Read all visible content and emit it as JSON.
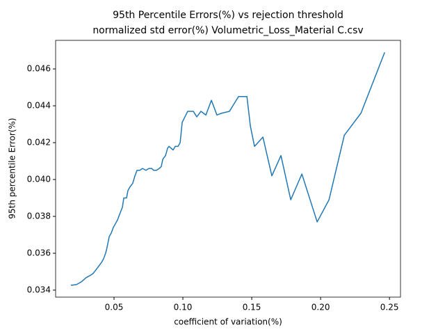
{
  "chart_data": {
    "type": "line",
    "title": [
      "95th Percentile Errors(%) vs rejection threshold",
      "normalized std error(%) Volumetric_Loss_Material C.csv"
    ],
    "x_label": "coefficient of variation(%)",
    "y_label": "95th percentile Error(%)",
    "x": [
      0.0187,
      0.0227,
      0.0263,
      0.0298,
      0.0328,
      0.0348,
      0.0379,
      0.0409,
      0.0424,
      0.0439,
      0.0449,
      0.0465,
      0.048,
      0.0495,
      0.051,
      0.0525,
      0.054,
      0.0561,
      0.0571,
      0.0591,
      0.0601,
      0.0616,
      0.0636,
      0.0652,
      0.0667,
      0.0687,
      0.0707,
      0.0732,
      0.0753,
      0.0773,
      0.0788,
      0.0808,
      0.0828,
      0.0843,
      0.0854,
      0.0874,
      0.0889,
      0.0899,
      0.0914,
      0.0929,
      0.0944,
      0.0965,
      0.098,
      0.0995,
      0.1015,
      0.1035,
      0.1061,
      0.1076,
      0.1101,
      0.1131,
      0.1167,
      0.1207,
      0.1247,
      0.1283,
      0.1338,
      0.1404,
      0.1465,
      0.149,
      0.152,
      0.1581,
      0.1646,
      0.1712,
      0.1783,
      0.1864,
      0.1975,
      0.2061,
      0.2172,
      0.2293,
      0.2465
    ],
    "series": [
      {
        "color": "#1f77b4",
        "values": [
          0.03426,
          0.0343,
          0.03445,
          0.03468,
          0.0348,
          0.0349,
          0.0352,
          0.0355,
          0.0357,
          0.036,
          0.0363,
          0.0369,
          0.0371,
          0.0374,
          0.0376,
          0.0378,
          0.0381,
          0.0385,
          0.039,
          0.039,
          0.0394,
          0.0396,
          0.0398,
          0.0402,
          0.0405,
          0.0405,
          0.0406,
          0.0405,
          0.0406,
          0.0406,
          0.0405,
          0.0405,
          0.0406,
          0.0407,
          0.0411,
          0.0413,
          0.0417,
          0.0418,
          0.0417,
          0.0416,
          0.0418,
          0.0418,
          0.042,
          0.0431,
          0.0434,
          0.0437,
          0.0437,
          0.0437,
          0.0434,
          0.0437,
          0.0435,
          0.0443,
          0.0435,
          0.0436,
          0.0437,
          0.0445,
          0.0445,
          0.0429,
          0.0418,
          0.0423,
          0.0402,
          0.0413,
          0.0389,
          0.0403,
          0.0377,
          0.0389,
          0.0424,
          0.0436,
          0.0469
        ]
      }
    ],
    "xlim": [
      0.0076,
      0.258
    ],
    "ylim": [
      0.03362,
      0.04755
    ],
    "xticks": [
      0.05,
      {
        "value": 0.1,
        "label": "0.10"
      },
      0.15,
      {
        "value": 0.2,
        "label": "0.20"
      },
      0.25
    ],
    "yticks": [
      0.034,
      0.036,
      0.038,
      {
        "value": 0.04,
        "label": "0.040"
      },
      0.042,
      0.044,
      0.046
    ],
    "grid": false
  }
}
